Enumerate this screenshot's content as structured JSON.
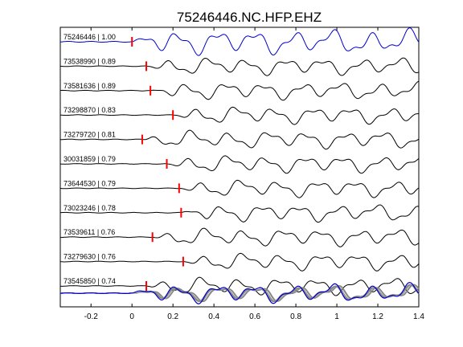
{
  "chart_data": {
    "type": "line",
    "title": "75246446.NC.HFP.EHZ",
    "xlim": [
      -0.35,
      1.4
    ],
    "x_ticks": [
      -0.2,
      0,
      0.2,
      0.4,
      0.6,
      0.8,
      1,
      1.2,
      1.4
    ],
    "x_tick_labels": [
      "-0.2",
      "0",
      "0.2",
      "0.4",
      "0.6",
      "0.8",
      "1",
      "1.2",
      "1.4"
    ],
    "grid": false,
    "colors": {
      "reference": "#0000cc",
      "trace": "#000000",
      "pick": "#ff0000",
      "overlay": "#888888"
    },
    "traces": [
      {
        "label": "75246446 | 1.00",
        "pick": 0.0,
        "reference": true
      },
      {
        "label": "73538990 | 0.89",
        "pick": 0.07
      },
      {
        "label": "73581636 | 0.89",
        "pick": 0.09
      },
      {
        "label": "73298870 | 0.83",
        "pick": 0.2
      },
      {
        "label": "73279720 | 0.81",
        "pick": 0.05
      },
      {
        "label": "30031859 | 0.79",
        "pick": 0.17
      },
      {
        "label": "73644530 | 0.79",
        "pick": 0.23
      },
      {
        "label": "73023246 | 0.78",
        "pick": 0.24
      },
      {
        "label": "73539611 | 0.76",
        "pick": 0.1
      },
      {
        "label": "73279630 | 0.76",
        "pick": 0.25
      },
      {
        "label": "73545850 | 0.74",
        "pick": 0.07
      }
    ]
  }
}
